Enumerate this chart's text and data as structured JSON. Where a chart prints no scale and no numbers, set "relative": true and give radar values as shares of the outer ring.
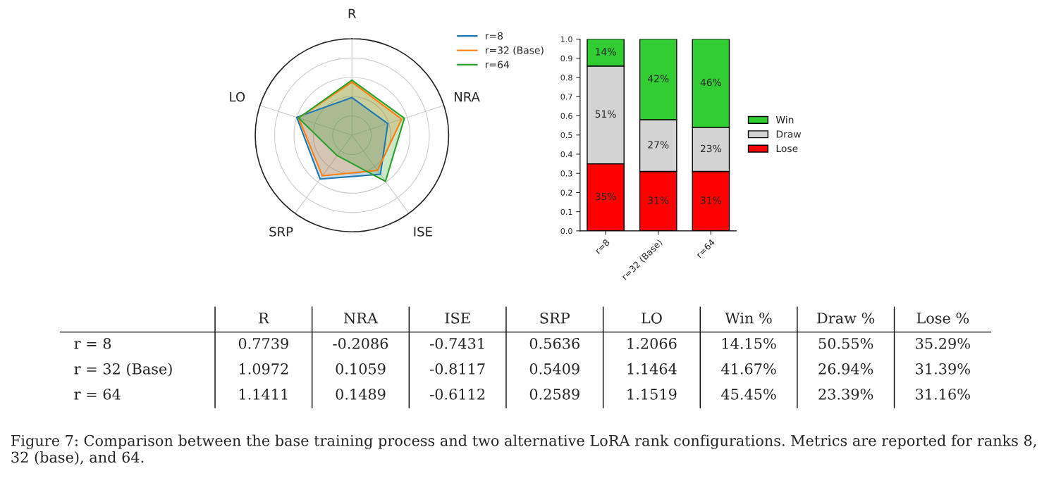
{
  "chart_data": [
    {
      "type": "radar",
      "relative": true,
      "categories": [
        "R",
        "NRA",
        "ISE",
        "SRP",
        "LO"
      ],
      "grid": true,
      "legend": "top right",
      "series": [
        {
          "name": "r=8",
          "color": "#1f77b4",
          "values": [
            0.39,
            0.39,
            0.5,
            0.56,
            0.6
          ]
        },
        {
          "name": "r=32 (Base)",
          "color": "#ff7f0e",
          "values": [
            0.55,
            0.54,
            0.45,
            0.52,
            0.58
          ]
        },
        {
          "name": "r=64",
          "color": "#2ca02c",
          "values": [
            0.57,
            0.57,
            0.59,
            0.26,
            0.58
          ]
        }
      ]
    },
    {
      "type": "bar",
      "stacked": true,
      "categories": [
        "r=8",
        "r=32 (Base)",
        "r=64"
      ],
      "ylim": [
        0,
        1.0
      ],
      "yticks": [
        {
          "value": 0,
          "label": "0.0"
        },
        0.1,
        0.2,
        0.3,
        0.4,
        0.5,
        0.6,
        0.7,
        0.8,
        0.9,
        {
          "value": 1,
          "label": "1.0"
        }
      ],
      "legend": "right",
      "grid": false,
      "series": [
        {
          "name": "Lose",
          "color": "#ff0000",
          "values": [
            0.35,
            0.31,
            0.31
          ],
          "value_labels": [
            "35%",
            "31%",
            "31%"
          ]
        },
        {
          "name": "Draw",
          "color": "#d3d3d3",
          "values": [
            0.51,
            0.27,
            0.23
          ],
          "value_labels": [
            "51%",
            "27%",
            "23%"
          ]
        },
        {
          "name": "Win",
          "color": "#32cd32",
          "values": [
            0.14,
            0.42,
            0.46
          ],
          "value_labels": [
            "14%",
            "42%",
            "46%"
          ]
        }
      ]
    },
    {
      "type": "other",
      "categories": [
        "R",
        "NRA",
        "ISE",
        "SRP",
        "LO",
        "Win %",
        "Draw %",
        "Lose %"
      ],
      "y_categories": [
        "r = 8",
        "r = 32 (Base)",
        "r = 64"
      ],
      "cell_labels": [
        [
          "0.7739",
          "-0.2086",
          "-0.7431",
          "0.5636",
          "1.2066",
          "14.15%",
          "50.55%",
          "35.29%"
        ],
        [
          "1.0972",
          "0.1059",
          "-0.8117",
          "0.5409",
          "1.1464",
          "41.67%",
          "26.94%",
          "31.39%"
        ],
        [
          "1.1411",
          "0.1489",
          "-0.6112",
          "0.2589",
          "1.1519",
          "45.45%",
          "23.39%",
          "31.16%"
        ]
      ],
      "annotations": [
        "Figure 7: Comparison between the base training process and two alternative LoRA rank configurations. Metrics are reported for ranks 8, 32 (base), and 64."
      ]
    }
  ]
}
